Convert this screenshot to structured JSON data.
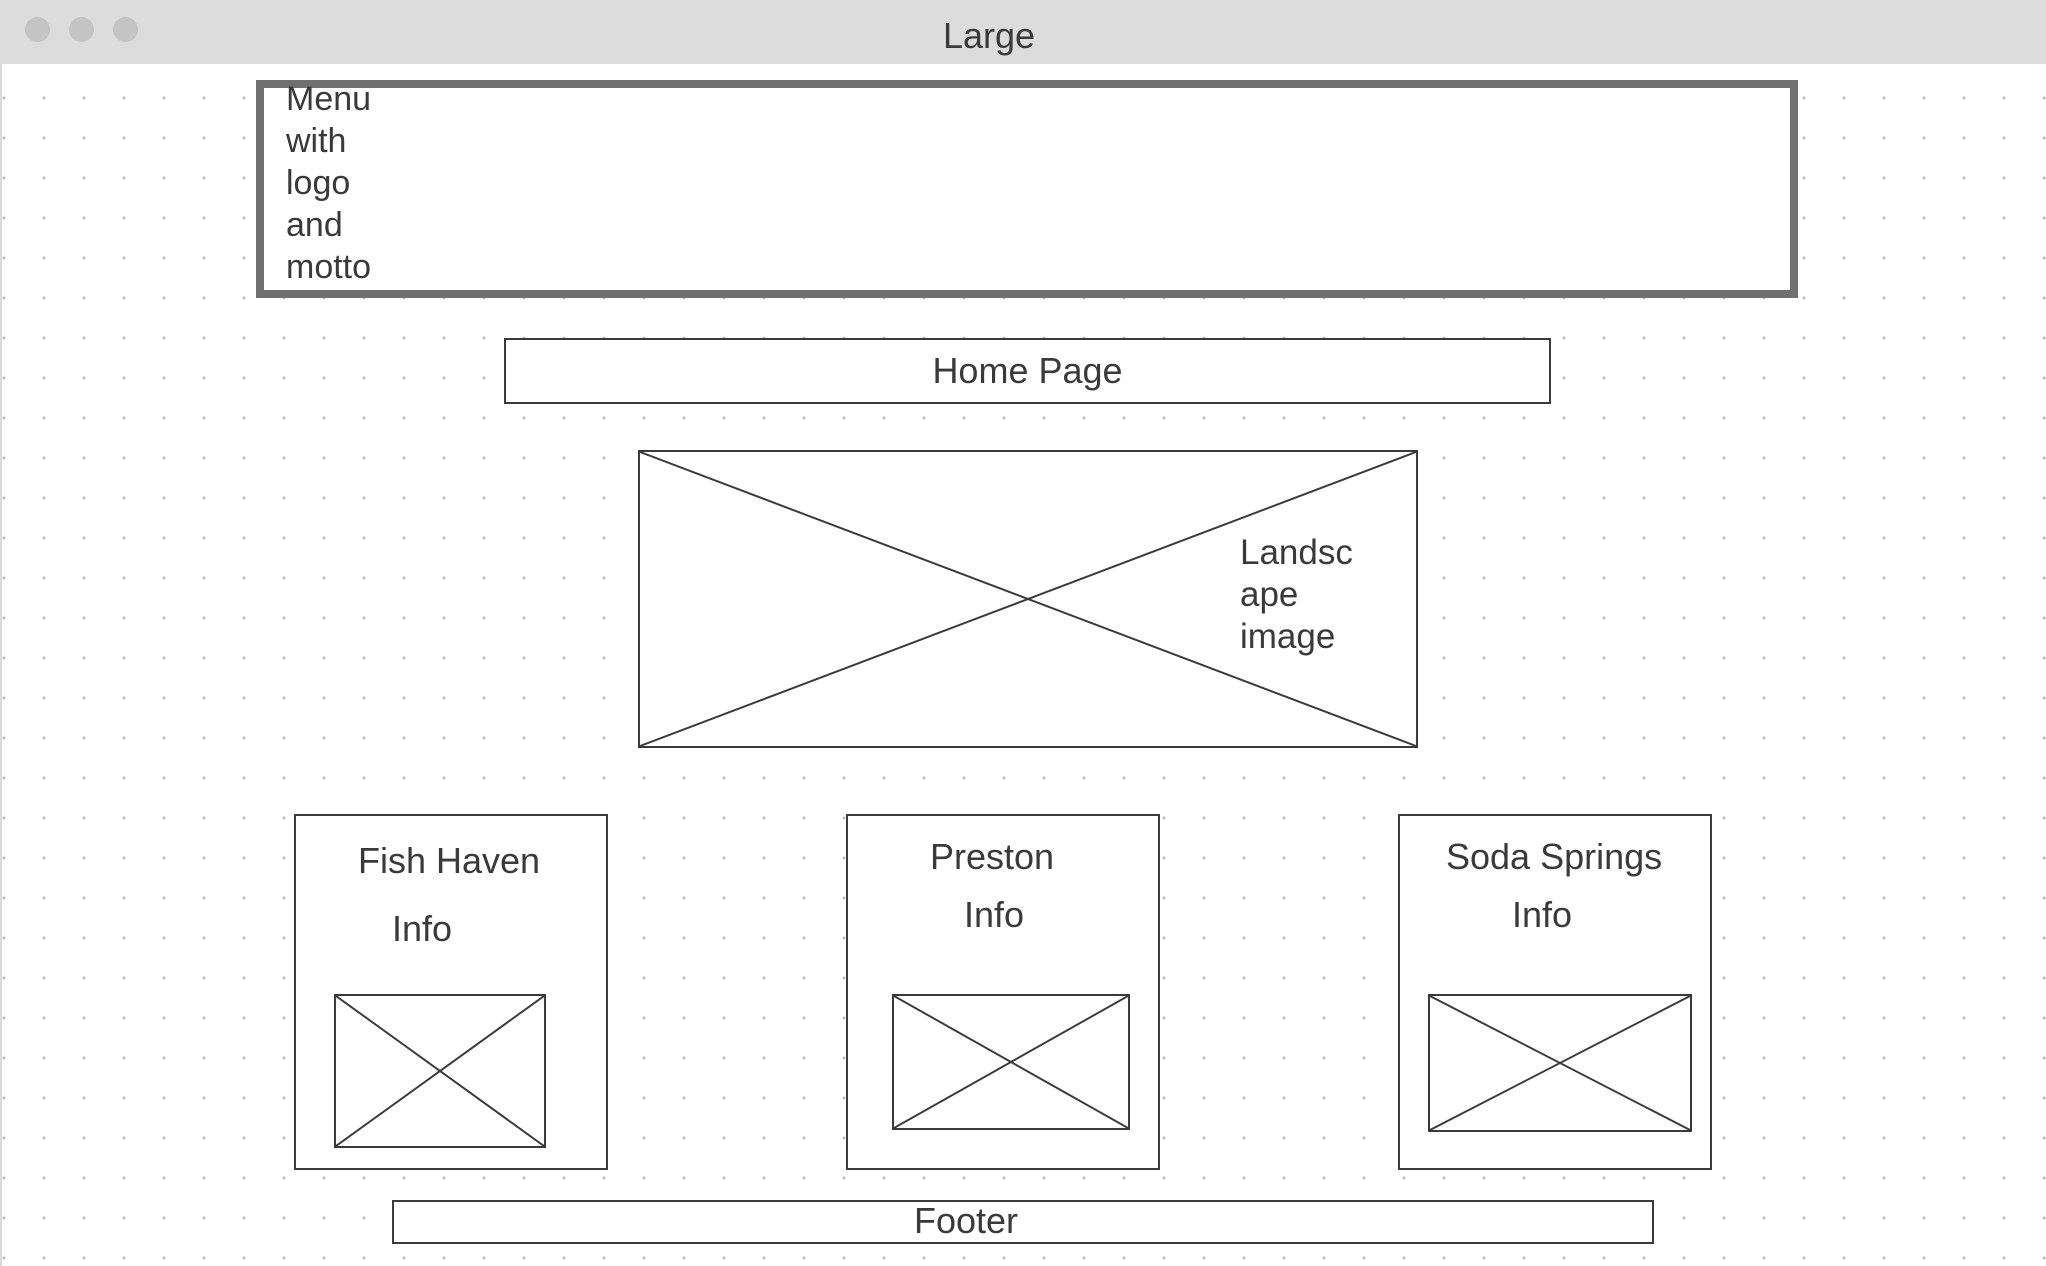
{
  "window": {
    "title": "Large"
  },
  "wireframe": {
    "menu_label": "Menu\nwith\nlogo\nand\nmotto",
    "page_title": "Home Page",
    "hero_label": "Landsc\nape\nimage",
    "cards": [
      {
        "title": "Fish Haven",
        "info": "Info"
      },
      {
        "title": "Preston",
        "info": "Info"
      },
      {
        "title": "Soda Springs",
        "info": "Info"
      }
    ],
    "footer_label": "Footer"
  }
}
